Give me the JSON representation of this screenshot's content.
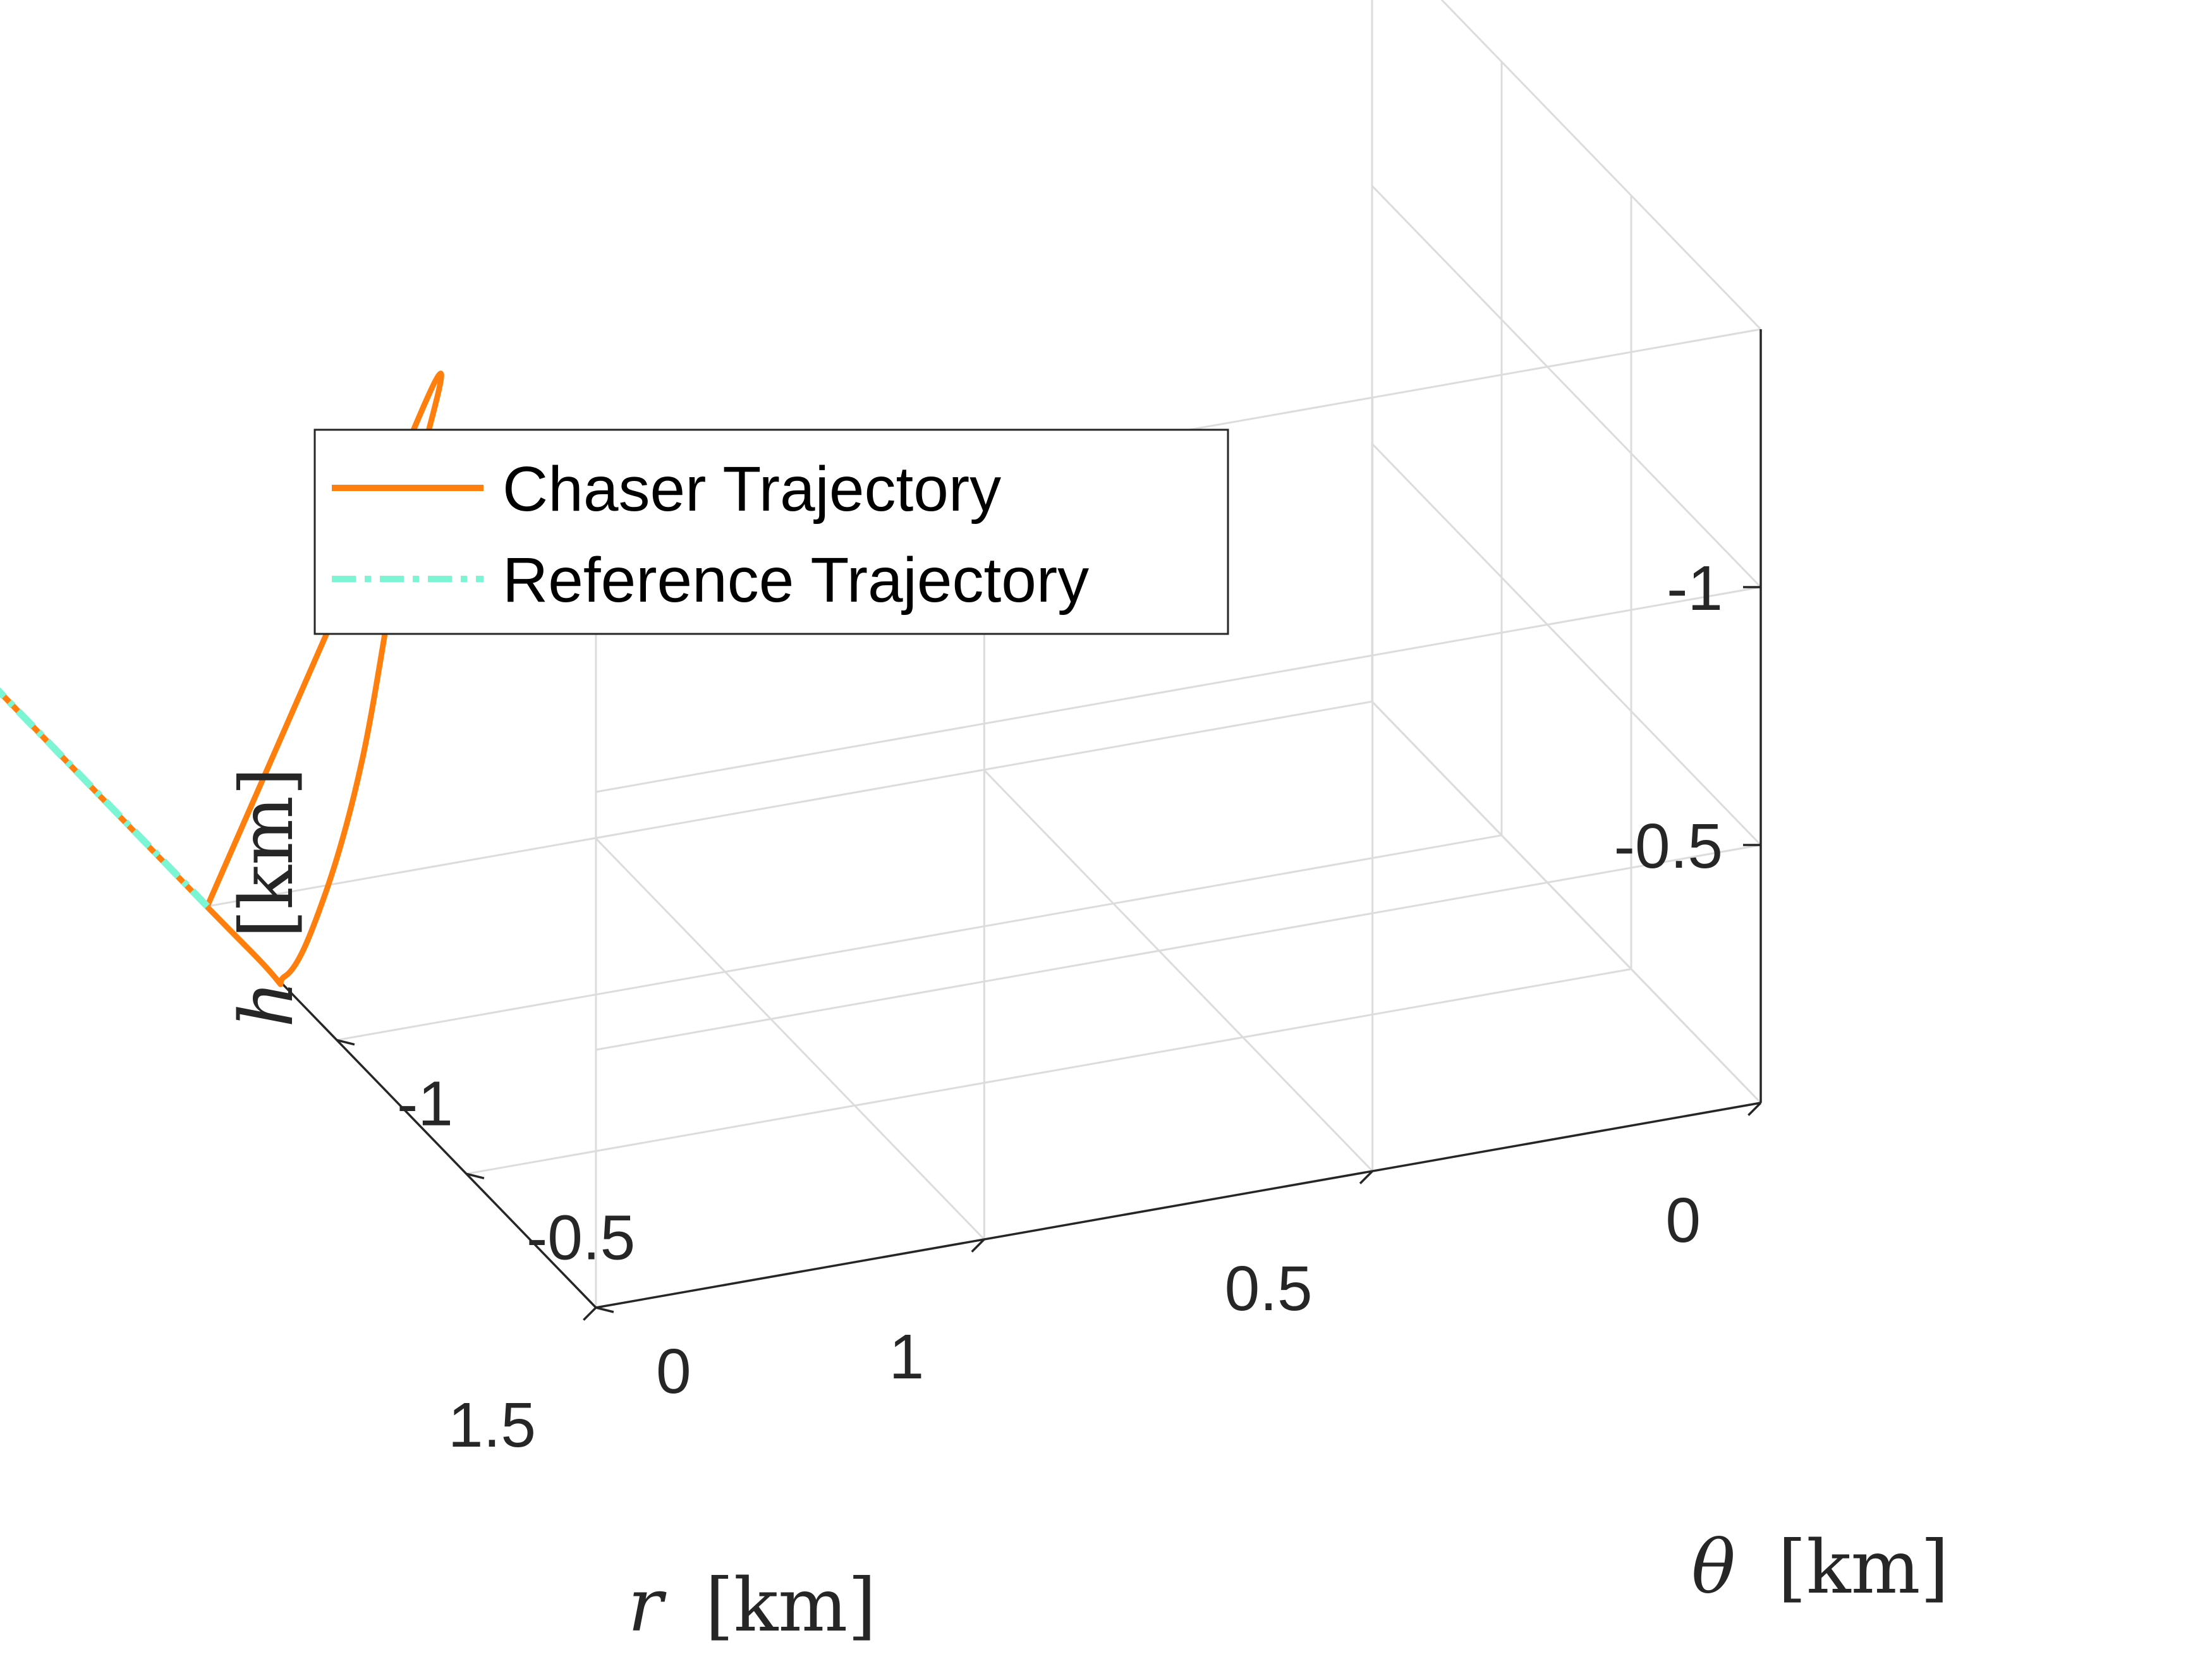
{
  "chart_data": {
    "type": "line3d",
    "title": "",
    "xlabel": {
      "sym": "r",
      "unit": "[km]"
    },
    "ylabel": {
      "sym": "θ",
      "unit": "[km]"
    },
    "zlabel": {
      "sym": "h",
      "unit": "[km]"
    },
    "xlim": [
      0,
      1.5
    ],
    "ylim": [
      -1.5,
      0
    ],
    "zlim": [
      -1.5,
      0
    ],
    "x_ticks": [
      "0",
      "0.5",
      "1",
      "1.5"
    ],
    "y_ticks": [
      "0",
      "-0.5",
      "-1"
    ],
    "z_ticks": [
      "-0.5",
      "-1"
    ],
    "grid": true,
    "legend_position": "top-left",
    "series": [
      {
        "name": "Chaser Trajectory",
        "style": "solid",
        "color": "#FF7F0E",
        "points": [
          [
            1.5,
            -1.5,
            0
          ],
          [
            1.5,
            -1.2,
            -0.5
          ],
          [
            1.5,
            -0.9,
            -1.0
          ],
          [
            1.5,
            -0.6,
            -1.5
          ],
          [
            1.5,
            -0.75,
            -1.1
          ],
          [
            1.5,
            -0.9,
            -0.6
          ],
          [
            1.5,
            -1.05,
            -0.25
          ],
          [
            1.5,
            -1.2,
            -0.02
          ],
          [
            1.5,
            -1.35,
            0
          ],
          [
            1.5,
            -2.4,
            0
          ],
          [
            1.5,
            -3.6,
            0
          ]
        ]
      },
      {
        "name": "Reference Trajectory",
        "style": "dashdot",
        "color": "#7CF5D5",
        "points": [
          [
            1.5,
            -1.5,
            0
          ],
          [
            1.5,
            -3.6,
            0
          ]
        ]
      }
    ]
  }
}
